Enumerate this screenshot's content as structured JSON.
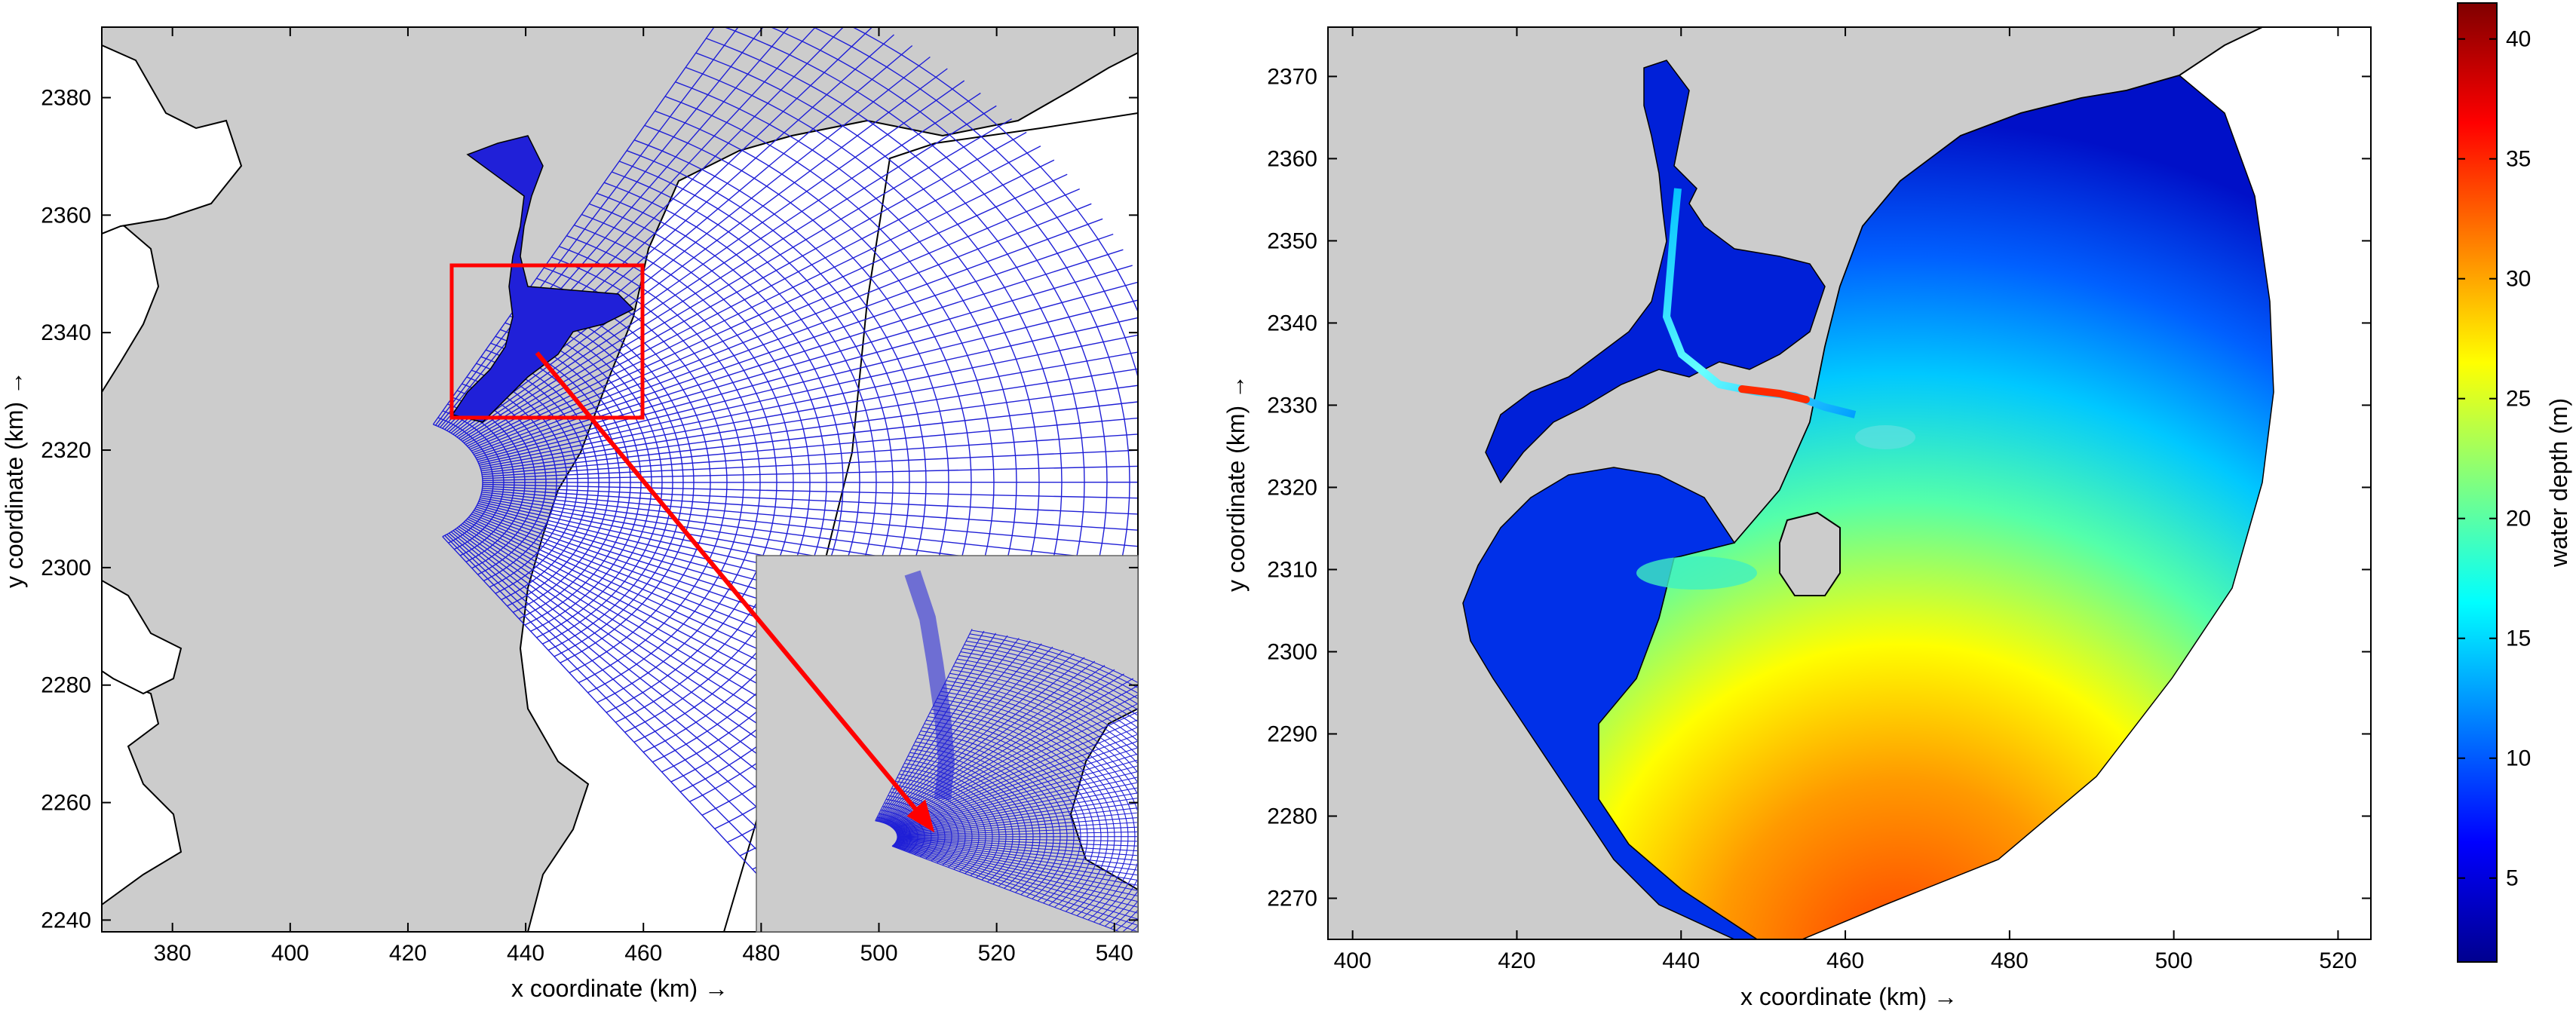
{
  "chart_data": [
    {
      "type": "map",
      "panel": "left",
      "content": "computational grid (curvilinear, blue) over grey land mask, with red zoom box and inset",
      "xlabel": "x coordinate (km) →",
      "ylabel": "y coordinate (km) →",
      "xlim": [
        368,
        544
      ],
      "ylim": [
        2238,
        2392
      ],
      "xticks": [
        380,
        400,
        420,
        440,
        460,
        480,
        500,
        520,
        540
      ],
      "yticks": [
        2240,
        2260,
        2280,
        2300,
        2320,
        2340,
        2360,
        2380
      ],
      "grid_color": "#1f1fd6",
      "land_color": "#cccccc",
      "zoom_box": {
        "x": [
          427,
          460
        ],
        "y": [
          2326,
          2352
        ],
        "color": "#ff0000"
      },
      "arrow": {
        "from": [
          441,
          2337
        ],
        "to": [
          509,
          2256
        ],
        "color": "#ff0000"
      }
    },
    {
      "type": "heatmap",
      "panel": "right",
      "content": "water depth field over grey land mask",
      "xlabel": "x coordinate (km) →",
      "ylabel": "y coordinate (km) →",
      "xlim": [
        397,
        524
      ],
      "ylim": [
        2265,
        2376
      ],
      "xticks": [
        400,
        420,
        440,
        460,
        480,
        500,
        520
      ],
      "yticks": [
        2270,
        2280,
        2290,
        2300,
        2310,
        2320,
        2330,
        2340,
        2350,
        2360,
        2370
      ],
      "colormap": "jet",
      "land_color": "#cccccc"
    }
  ],
  "colorbar": {
    "label": "water depth (m)",
    "ticks": [
      5,
      10,
      15,
      20,
      25,
      30,
      35,
      40
    ],
    "range": [
      1.5,
      41.5
    ],
    "colormap": "jet"
  }
}
